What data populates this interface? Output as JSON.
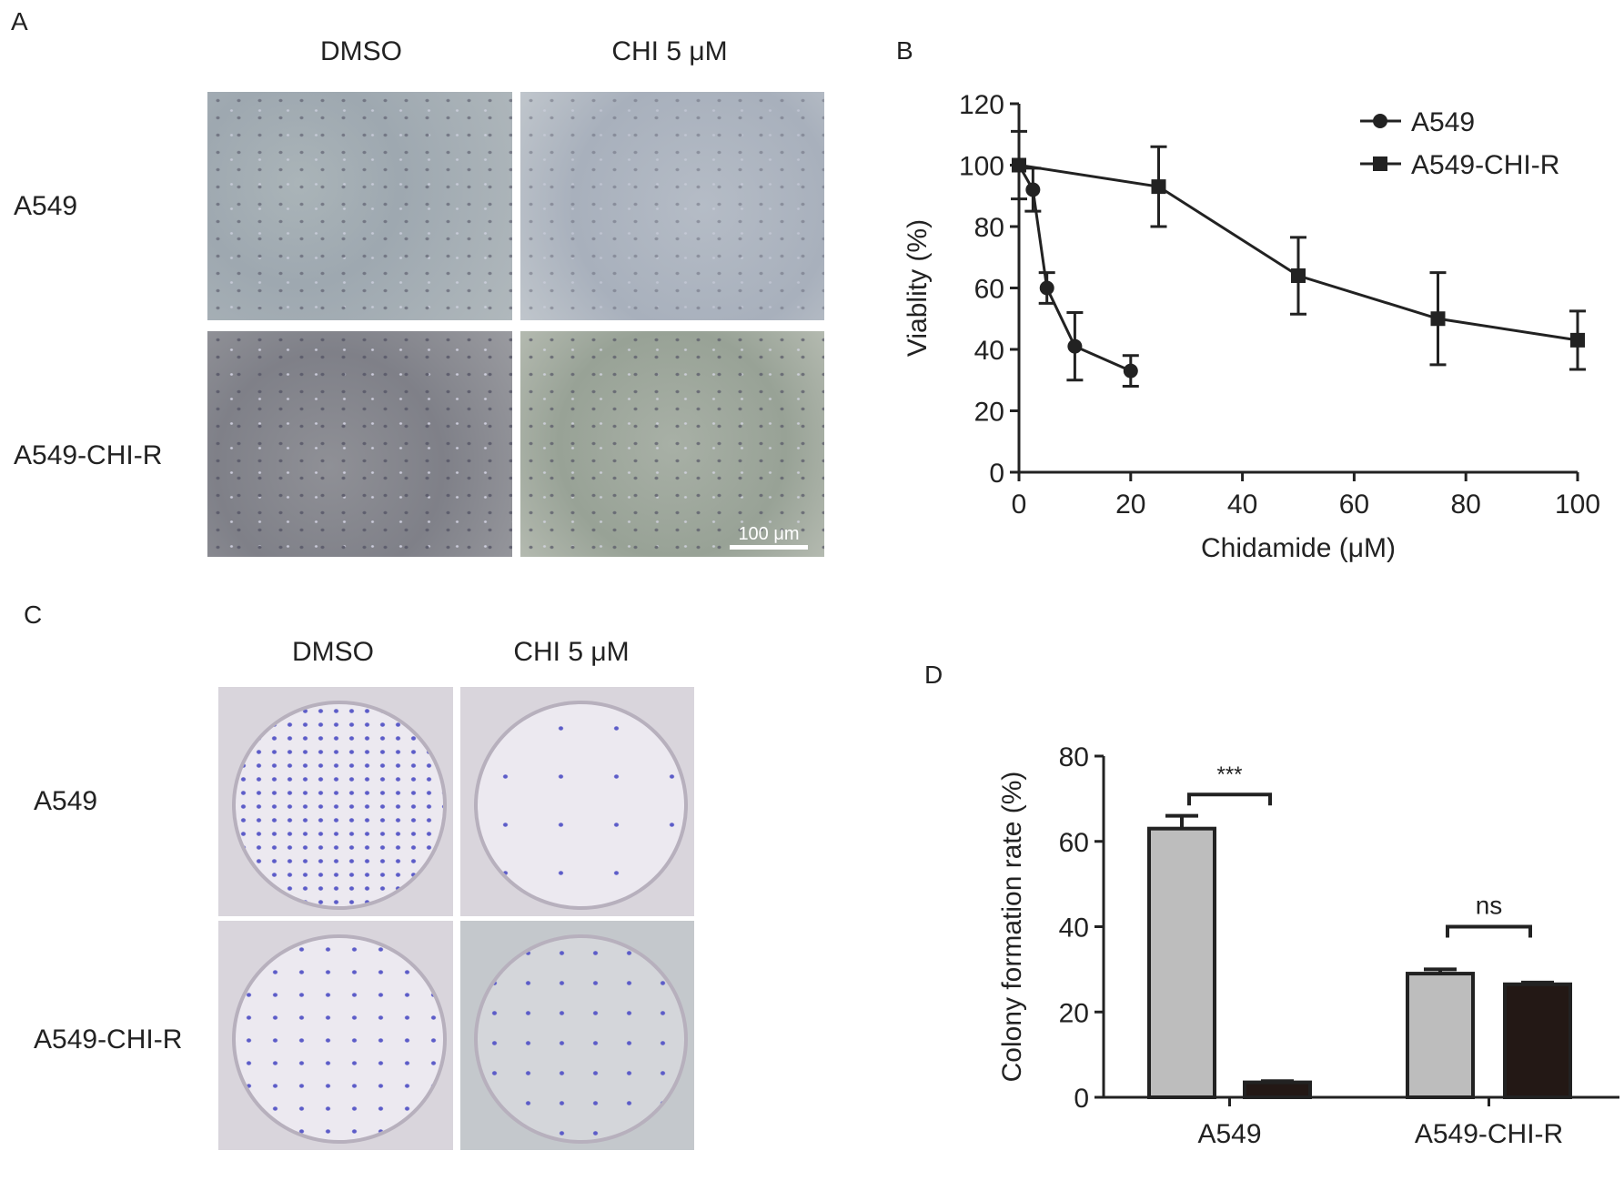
{
  "panels": {
    "a": "A",
    "b": "B",
    "c": "C",
    "d": "D"
  },
  "panel_a": {
    "columns": [
      "DMSO",
      "CHI 5 μM"
    ],
    "rows": [
      "A549",
      "A549-CHI-R"
    ],
    "scale_bar": "100 μm"
  },
  "panel_c": {
    "columns": [
      "DMSO",
      "CHI 5 μM"
    ],
    "rows": [
      "A549",
      "A549-CHI-R"
    ]
  },
  "chart_data": [
    {
      "type": "line",
      "xlabel": "Chidamide (μM)",
      "ylabel": "Viablity (%)",
      "xlim": [
        0,
        100
      ],
      "ylim": [
        0,
        120
      ],
      "xticks": [
        0,
        20,
        40,
        60,
        80,
        100
      ],
      "yticks": [
        0,
        20,
        40,
        60,
        80,
        100,
        120
      ],
      "legend": "top-right",
      "grid": false,
      "series": [
        {
          "name": "A549",
          "marker": "circle",
          "x": [
            0,
            2.5,
            5,
            10,
            20
          ],
          "y": [
            100,
            92,
            60,
            41,
            33
          ],
          "err": [
            11,
            7,
            5,
            11,
            5
          ]
        },
        {
          "name": "A549-CHI-R",
          "marker": "square",
          "x": [
            0,
            25,
            50,
            75,
            100
          ],
          "y": [
            100,
            93,
            64,
            50,
            43
          ],
          "err": [
            0,
            13,
            12.5,
            15,
            9.5
          ]
        }
      ]
    },
    {
      "type": "bar",
      "ylabel": "Colony formation rate (%)",
      "ylim": [
        0,
        80
      ],
      "yticks": [
        0,
        20,
        40,
        60,
        80
      ],
      "categories": [
        "A549",
        "A549-CHI-R"
      ],
      "grid": false,
      "series": [
        {
          "color": "#bdbdbd",
          "values": [
            63,
            29
          ],
          "err": [
            3,
            1
          ]
        },
        {
          "color": "#231815",
          "values": [
            3.5,
            26.5
          ],
          "err": [
            0.3,
            0.4
          ]
        }
      ],
      "annotations": [
        "***",
        "ns"
      ]
    }
  ]
}
